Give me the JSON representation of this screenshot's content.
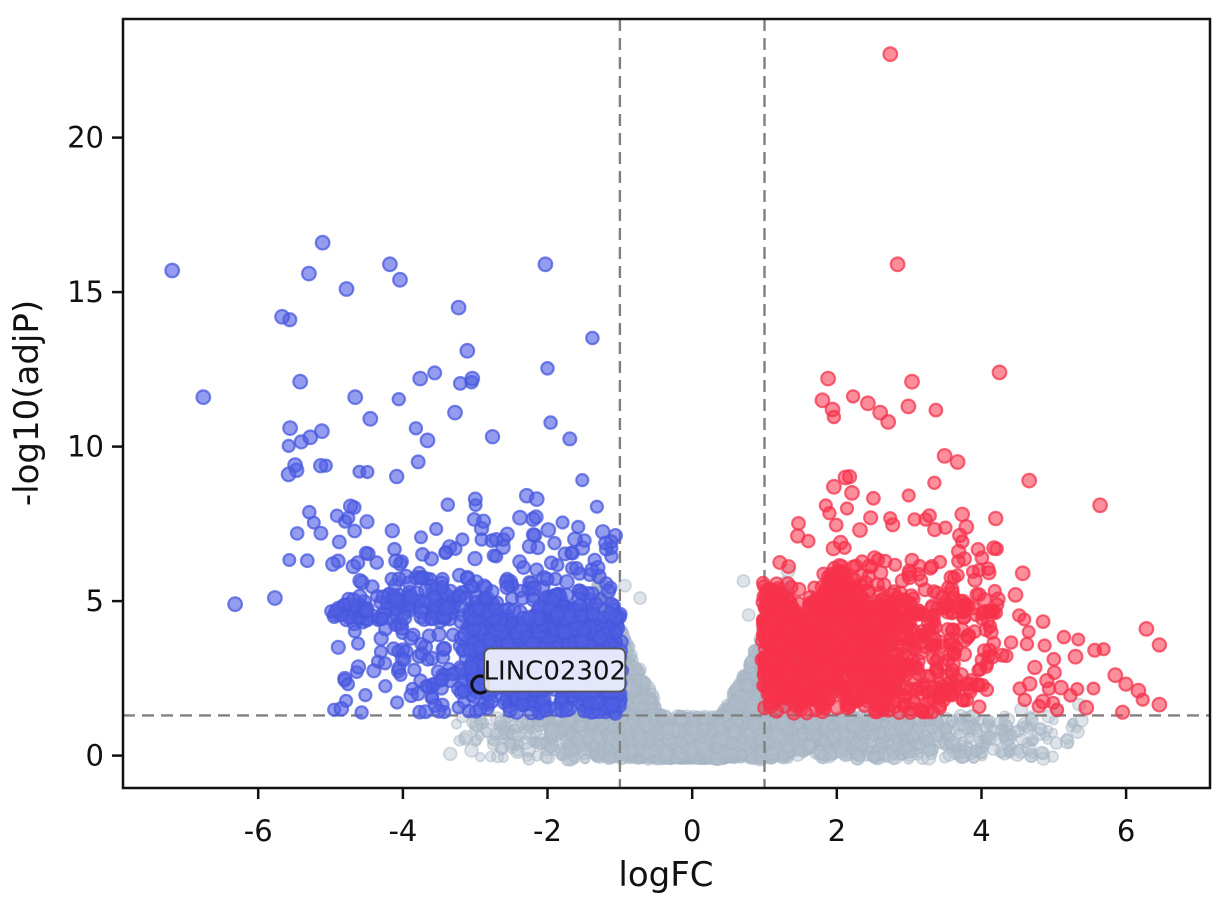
{
  "chart_data": {
    "type": "scatter",
    "subtype": "volcano-plot",
    "title": "",
    "xlabel": "logFC",
    "ylabel": "-log10(adjP)",
    "xlim": [
      -7.87,
      7.16
    ],
    "ylim": [
      -1.05,
      23.84
    ],
    "xticks": [
      -6,
      -4,
      -2,
      0,
      2,
      4,
      6
    ],
    "yticks": [
      0,
      5,
      10,
      15,
      20
    ],
    "grid": false,
    "legend": "none",
    "axis_color": "#111111",
    "thresholds": {
      "logfc_lines": [
        -1,
        1
      ],
      "significance_line": 1.3,
      "line_color": "#808080",
      "line_style": "dashed"
    },
    "annotation": {
      "text": "LINC02302",
      "x": -2.93,
      "y": 2.3,
      "box_fill": "#FFFFFF",
      "box_alpha": 0.85,
      "box_border": "#555555",
      "marker_ring_color": "#111111"
    },
    "seed": 7,
    "series": [
      {
        "name": "not-significant",
        "apparent_color": "#CDD6DE",
        "marker_fill": "rgba(176,190,202,0.42)",
        "marker_edge": "rgba(165,180,196,0.5)",
        "edge_width": 1.6,
        "r": 5.6,
        "r_jitter": 1.4,
        "clusters": [
          {
            "kind": "funnel",
            "n": 2300,
            "xh": 1.33,
            "ytop": 6.1,
            "exp": 1.3
          },
          {
            "kind": "band",
            "n": 1550,
            "c": 0.6,
            "hwL": 4.1,
            "hwR": 5.0,
            "y0": -0.12,
            "y1": 1.3
          }
        ],
        "points": [
          [
            0.71,
            5.65
          ],
          [
            -0.72,
            5.1
          ],
          [
            -0.93,
            5.5
          ],
          [
            0.78,
            4.55
          ],
          [
            5.35,
            1.65
          ],
          [
            5.05,
            1.45
          ],
          [
            4.55,
            1.5
          ]
        ]
      },
      {
        "name": "down-regulated",
        "apparent_color": "#5765E4",
        "marker_fill": "rgba(80,95,228,0.62)",
        "marker_edge": "rgba(72,88,222,0.75)",
        "edge_width": 2.2,
        "r": 6.3,
        "r_jitter": 0.4,
        "clusters": [
          {
            "kind": "core",
            "n": 980,
            "x0": -3.35,
            "x1": -0.97,
            "y0": 1.33,
            "top": 4.35,
            "topVar": 0.95,
            "fade": "left",
            "fadeW": 0.55,
            "phase": 0.5
          },
          {
            "kind": "rect",
            "n": 165,
            "x0": -4.95,
            "x1": -3.3,
            "y0": 1.38,
            "y1": 5.2,
            "fade": "left",
            "fadePow": 0.7
          },
          {
            "kind": "decay",
            "n": 275,
            "x0": -5.0,
            "x1": -1.05,
            "y0": 4.4,
            "scale": 0.95,
            "cap": 8.6
          },
          {
            "kind": "decay",
            "n": 60,
            "x0": -5.65,
            "x1": -1.3,
            "y0": 6.0,
            "scale": 2.4,
            "cap": 14.6
          }
        ],
        "points": [
          [
            -7.19,
            15.7
          ],
          [
            -6.76,
            11.6
          ],
          [
            -5.11,
            16.6
          ],
          [
            -5.3,
            15.6
          ],
          [
            -4.78,
            15.1
          ],
          [
            -4.18,
            15.9
          ],
          [
            -4.04,
            15.4
          ],
          [
            -2.03,
            15.9
          ],
          [
            -3.23,
            14.5
          ],
          [
            -5.67,
            14.2
          ],
          [
            -5.42,
            12.1
          ],
          [
            -4.66,
            11.6
          ],
          [
            -3.76,
            12.2
          ],
          [
            -3.04,
            12.2
          ],
          [
            -5.56,
            10.6
          ],
          [
            -5.12,
            10.5
          ],
          [
            -5.28,
            10.3
          ],
          [
            -4.45,
            10.9
          ],
          [
            -3.66,
            10.2
          ],
          [
            -3.28,
            11.1
          ],
          [
            -3.11,
            13.1
          ],
          [
            -5.49,
            9.4
          ],
          [
            -5.58,
            9.1
          ],
          [
            -2.38,
            7.7
          ],
          [
            -5.77,
            5.1
          ],
          [
            -6.32,
            4.9
          ],
          [
            -2.15,
            8.3
          ],
          [
            -1.62,
            7.0
          ],
          [
            -1.99,
            7.3
          ]
        ]
      },
      {
        "name": "up-regulated",
        "apparent_color": "#F93A52",
        "marker_fill": "rgba(250,48,72,0.55)",
        "marker_edge": "rgba(244,52,78,0.75)",
        "edge_width": 2.2,
        "r": 6.3,
        "r_jitter": 0.4,
        "clusters": [
          {
            "kind": "core",
            "n": 1080,
            "x0": 0.97,
            "x1": 3.05,
            "y0": 1.33,
            "top": 4.9,
            "topVar": 1.35,
            "fade": "right",
            "fadeW": 0.5,
            "phase": 2.0
          },
          {
            "kind": "rect",
            "n": 290,
            "x0": 2.9,
            "x1": 4.35,
            "y0": 1.35,
            "y1": 4.9,
            "fade": "right",
            "fadePow": 0.75
          },
          {
            "kind": "decay",
            "n": 150,
            "x0": 1.05,
            "x1": 4.25,
            "y0": 4.55,
            "scale": 0.95,
            "cap": 8.0
          },
          {
            "kind": "decay",
            "n": 26,
            "x0": 1.2,
            "x1": 4.1,
            "y0": 6.0,
            "scale": 2.2,
            "cap": 12.6
          },
          {
            "kind": "rect",
            "n": 34,
            "x0": 4.3,
            "x1": 5.55,
            "y0": 1.38,
            "y1": 4.55,
            "fade": "right",
            "fadePow": 0.5
          },
          {
            "kind": "rect",
            "n": 7,
            "x0": 5.5,
            "x1": 6.5,
            "y0": 1.4,
            "y1": 4.2
          }
        ],
        "points": [
          [
            2.74,
            22.7
          ],
          [
            2.84,
            15.9
          ],
          [
            4.25,
            12.4
          ],
          [
            3.04,
            12.1
          ],
          [
            2.99,
            11.3
          ],
          [
            1.88,
            12.2
          ],
          [
            1.8,
            11.5
          ],
          [
            1.94,
            11.2
          ],
          [
            2.43,
            11.4
          ],
          [
            2.6,
            11.1
          ],
          [
            2.71,
            10.8
          ],
          [
            3.49,
            9.7
          ],
          [
            3.67,
            9.5
          ],
          [
            2.12,
            9.0
          ],
          [
            1.96,
            8.7
          ],
          [
            2.21,
            8.5
          ],
          [
            4.66,
            8.9
          ],
          [
            5.64,
            8.1
          ],
          [
            3.79,
            7.4
          ],
          [
            2.32,
            7.3
          ],
          [
            4.57,
            5.9
          ],
          [
            4.47,
            5.2
          ],
          [
            6.28,
            4.1
          ],
          [
            6.17,
            2.1
          ],
          [
            6.46,
            1.65
          ],
          [
            5.85,
            2.6
          ],
          [
            5.3,
            3.2
          ],
          [
            5.1,
            2.2
          ],
          [
            4.85,
            1.75
          ],
          [
            5.45,
            1.55
          ]
        ]
      }
    ]
  }
}
